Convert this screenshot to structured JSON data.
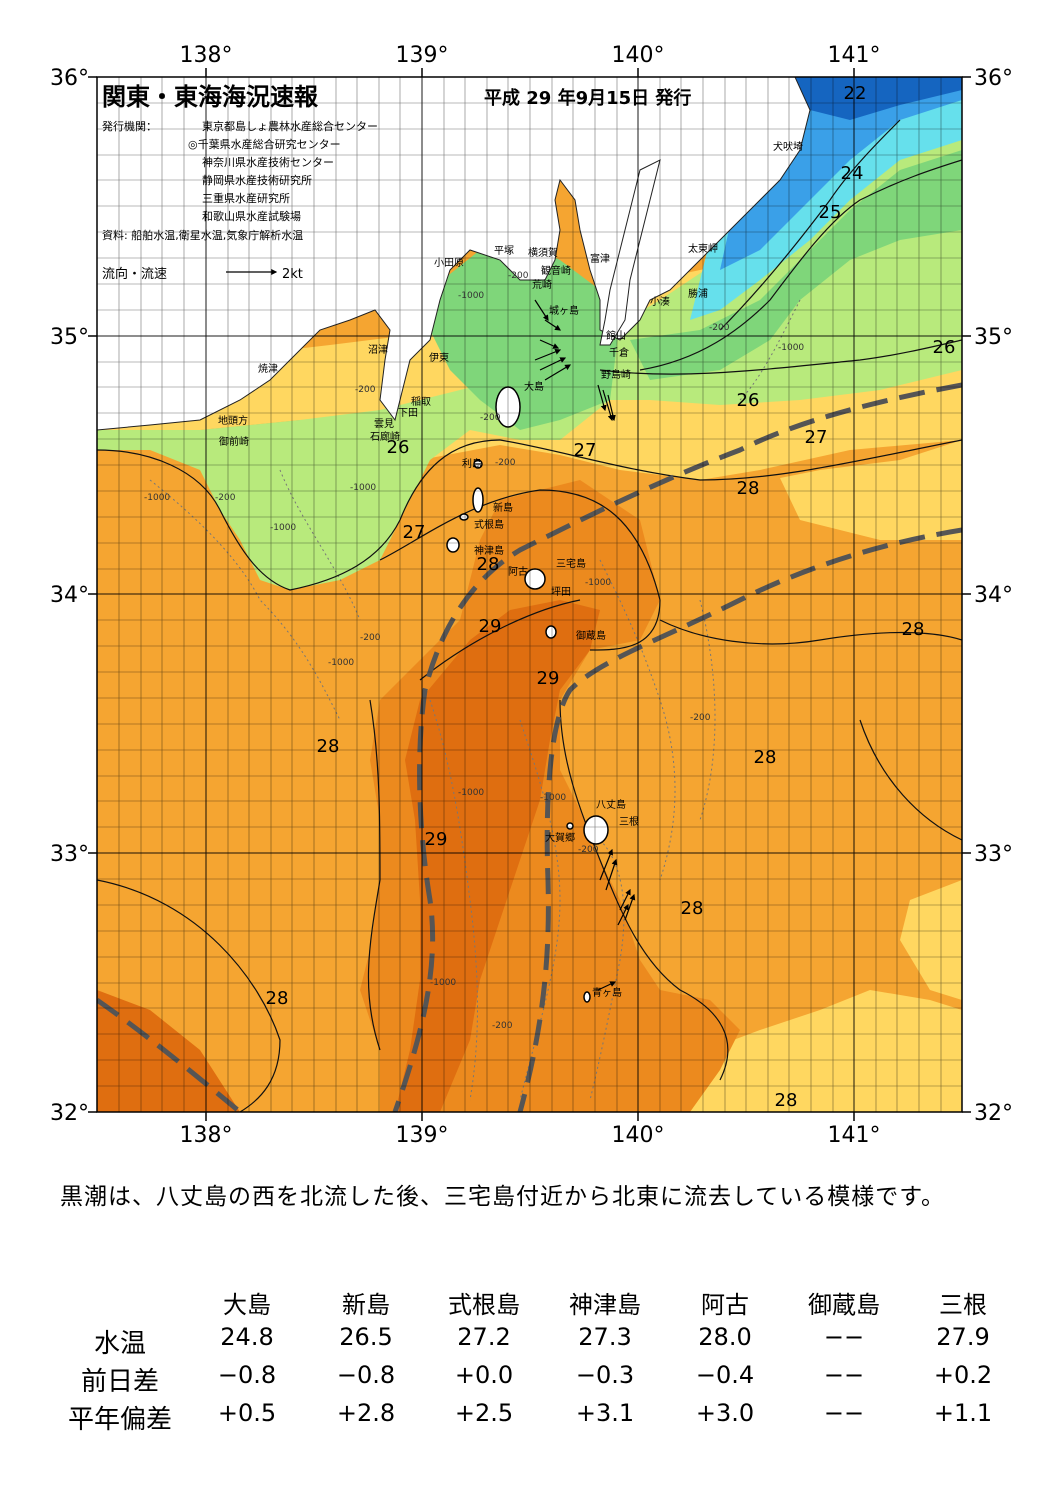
{
  "title": "関東・東海海況速報",
  "issue_date": "平成 29 年9月15日 発行",
  "publishers_label": "発行機関：",
  "publishers": [
    "東京都島しょ農林水産総合センター",
    "◎千葉県水産総合研究センター",
    "神奈川県水産技術センター",
    "静岡県水産技術研究所",
    "三重県水産研究所",
    "和歌山県水産試験場"
  ],
  "source": "資料: 船舶水温,衛星水温,気象庁解析水温",
  "flow_legend": {
    "label": "流向・流速",
    "unit": "2kt"
  },
  "axes": {
    "lon_labels": [
      "138°",
      "139°",
      "140°",
      "141°"
    ],
    "lat_labels": [
      "36°",
      "35°",
      "34°",
      "33°",
      "32°"
    ]
  },
  "isotherm_labels": [
    "22",
    "24",
    "25",
    "26",
    "26",
    "26",
    "27",
    "27",
    "27",
    "28",
    "28",
    "28",
    "28",
    "28",
    "28",
    "28",
    "28",
    "29",
    "29",
    "29"
  ],
  "depth_labels": [
    "-200",
    "-1000",
    "-200",
    "-200",
    "-1000",
    "-1000",
    "-200",
    "-1000",
    "-200",
    "-1000",
    "-200",
    "-1000",
    "-1000",
    "-1000",
    "-1000",
    "-200",
    "-200",
    "-1000",
    "-200",
    "-200"
  ],
  "places": {
    "inubosaki": "犬吠埼",
    "taitomisaki": "太東岬",
    "katsuura": "勝浦",
    "kominato": "小湊",
    "futtsu": "富津",
    "tateyama": "館山",
    "chikura": "千倉",
    "nojimazaki": "野島崎",
    "kannonzaki": "観音崎",
    "yokosuka": "横須賀",
    "arasaki": "荒崎",
    "hiratsuka": "平塚",
    "odawara": "小田原",
    "jogashima": "城ヶ島",
    "numazu": "沼津",
    "ito": "伊東",
    "yaizu": "焼津",
    "inatori": "稲取",
    "shimoda": "下田",
    "mikomoto": "雲見",
    "irozaki": "石廊崎",
    "jitokata": "地頭方",
    "omaezaki": "御前崎",
    "oshima": "大島",
    "toshima": "利島",
    "niijima": "新島",
    "shikinejima": "式根島",
    "kozushima": "神津島",
    "miyakejima": "三宅島",
    "ako": "阿古",
    "tsubota": "坪田",
    "mikurajima": "御蔵島",
    "hachijojima": "八丈島",
    "okago": "大賀郷",
    "sanne": "三根",
    "aogashima": "青ヶ島"
  },
  "summary": "黒潮は、八丈島の西を北流した後、三宅島付近から北東に流去している模様です。",
  "stations": [
    "大島",
    "新島",
    "式根島",
    "神津島",
    "阿古",
    "御蔵島",
    "三根"
  ],
  "rows": [
    {
      "label": "水温",
      "values": [
        "24.8",
        "26.5",
        "27.2",
        "27.3",
        "28.0",
        "−−",
        "27.9"
      ]
    },
    {
      "label": "前日差",
      "values": [
        "−0.8",
        "−0.8",
        "+0.0",
        "−0.3",
        "−0.4",
        "−−",
        "+0.2"
      ]
    },
    {
      "label": "平年偏差",
      "values": [
        "+0.5",
        "+2.8",
        "+2.5",
        "+3.1",
        "+3.0",
        "−−",
        "+1.1"
      ]
    }
  ],
  "colors": {
    "coldest": "#1565c0",
    "cold": "#3aa0e8",
    "cyan": "#66e0ec",
    "green": "#7fd67a",
    "light_green": "#b8ea7c",
    "yellow": "#ffd760",
    "orange": "#f5a531",
    "dark_orange": "#ec8a1e",
    "deepest": "#df6e10",
    "kuroshio": "#555555"
  }
}
